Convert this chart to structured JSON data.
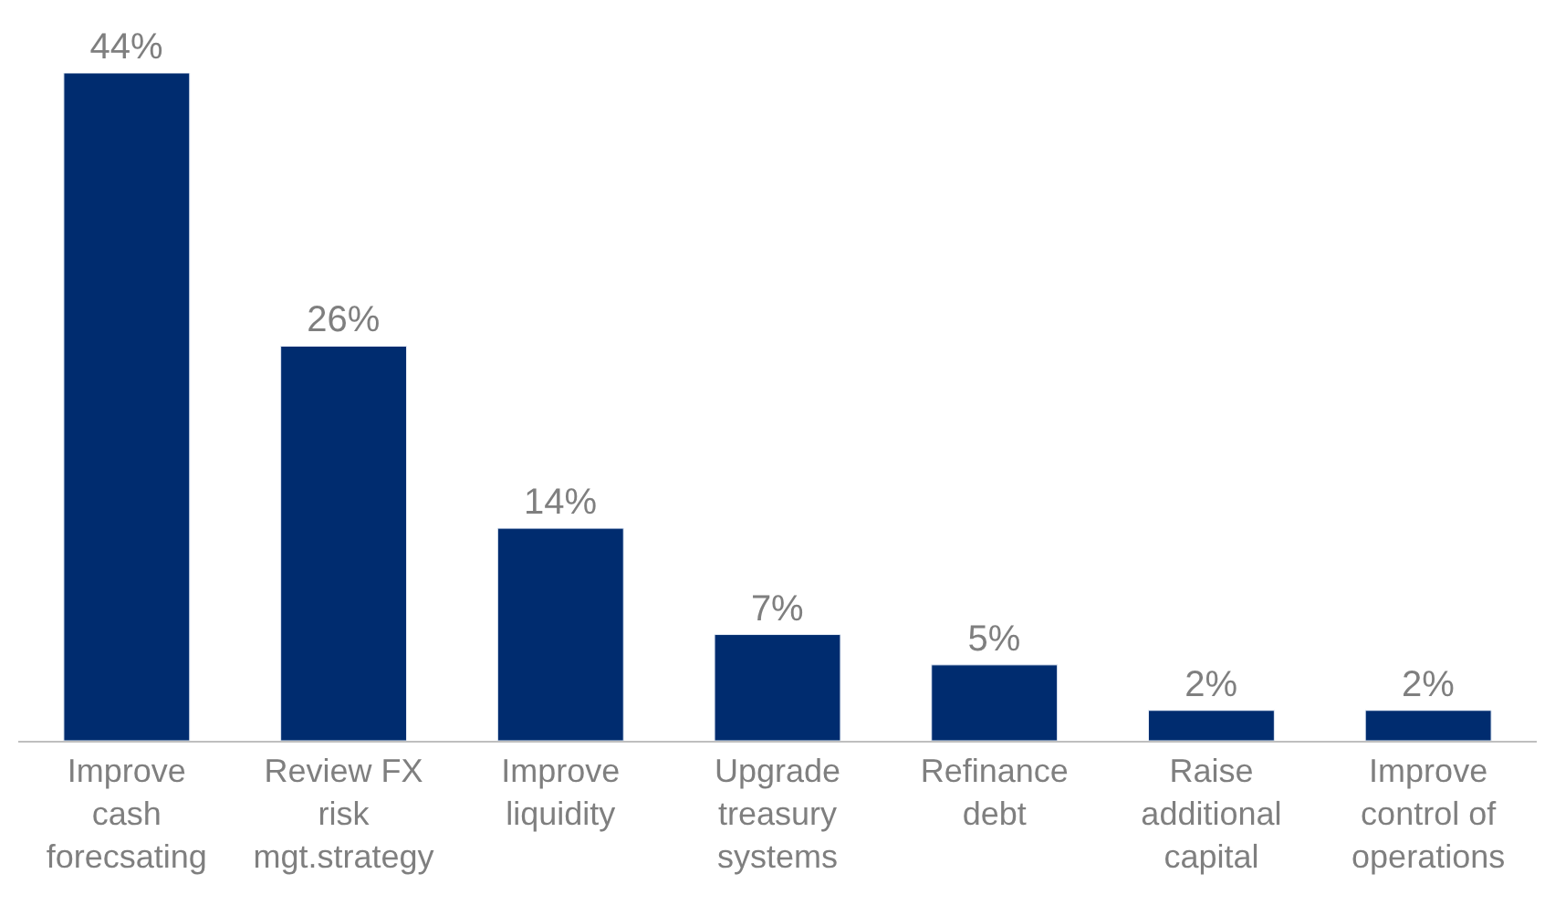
{
  "chart_data": {
    "type": "bar",
    "categories": [
      "Improve cash forecsating",
      "Review FX risk mgt.strategy",
      "Improve liquidity",
      "Upgrade treasury systems",
      "Refinance debt",
      "Raise additional capital",
      "Improve control of operations"
    ],
    "values": [
      44,
      26,
      14,
      7,
      5,
      2,
      2
    ],
    "value_labels": [
      "44%",
      "26%",
      "14%",
      "7%",
      "5%",
      "2%",
      "2%"
    ],
    "color": "#002c6f"
  }
}
